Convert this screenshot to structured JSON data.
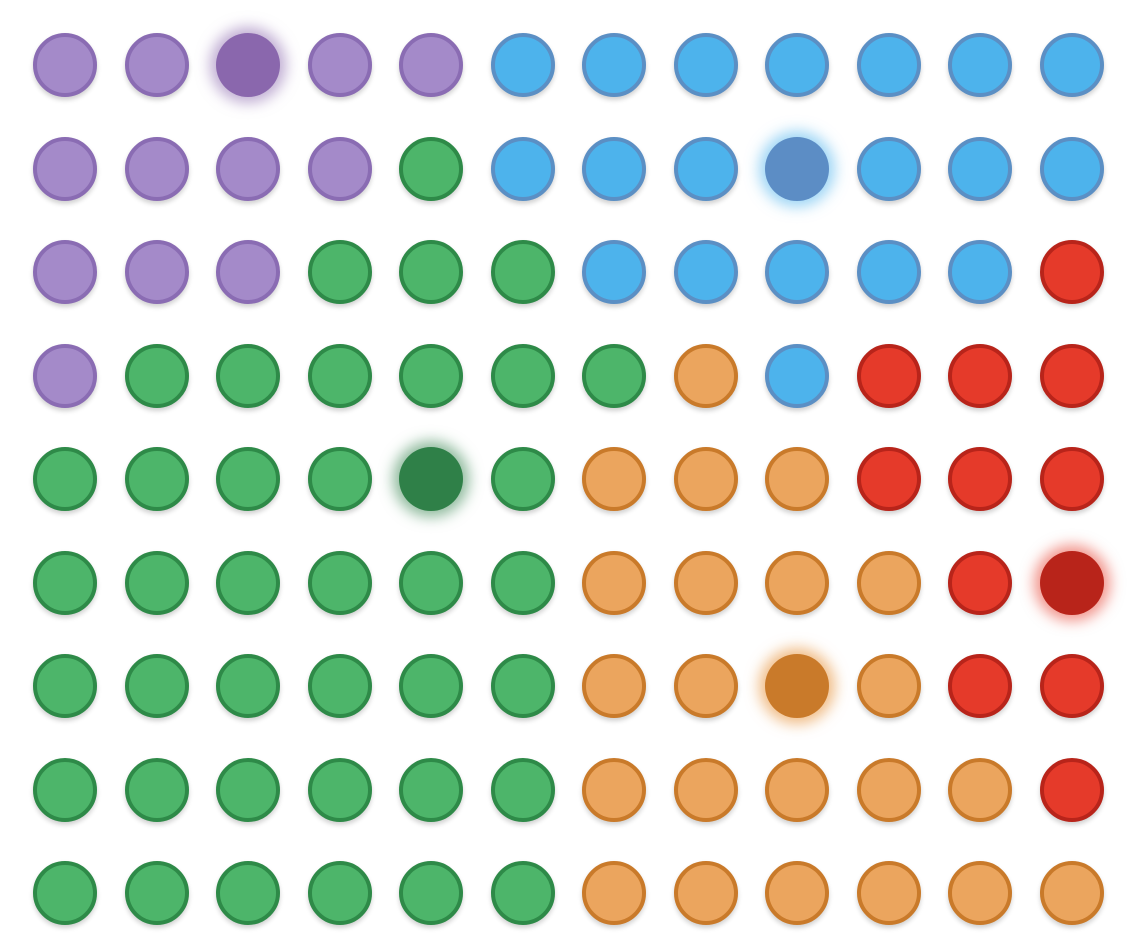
{
  "palette": {
    "purple": "#a48ac9",
    "blue": "#4db3ec",
    "green": "#4db56a",
    "orange": "#eba55e",
    "red": "#e53a2a"
  },
  "grid": {
    "rows": [
      [
        "purple",
        "purple",
        "purple",
        "purple",
        "purple",
        "blue",
        "blue",
        "blue",
        "blue",
        "blue",
        "blue",
        "blue"
      ],
      [
        "purple",
        "purple",
        "purple",
        "purple",
        "green",
        "blue",
        "blue",
        "blue",
        "blue",
        "blue",
        "blue",
        "blue"
      ],
      [
        "purple",
        "purple",
        "purple",
        "green",
        "green",
        "green",
        "blue",
        "blue",
        "blue",
        "blue",
        "blue",
        "red"
      ],
      [
        "purple",
        "green",
        "green",
        "green",
        "green",
        "green",
        "green",
        "orange",
        "blue",
        "red",
        "red",
        "red"
      ],
      [
        "green",
        "green",
        "green",
        "green",
        "green",
        "green",
        "orange",
        "orange",
        "orange",
        "red",
        "red",
        "red"
      ],
      [
        "green",
        "green",
        "green",
        "green",
        "green",
        "green",
        "orange",
        "orange",
        "orange",
        "orange",
        "red",
        "red"
      ],
      [
        "green",
        "green",
        "green",
        "green",
        "green",
        "green",
        "orange",
        "orange",
        "orange",
        "orange",
        "red",
        "red"
      ],
      [
        "green",
        "green",
        "green",
        "green",
        "green",
        "green",
        "orange",
        "orange",
        "orange",
        "orange",
        "orange",
        "red"
      ],
      [
        "green",
        "green",
        "green",
        "green",
        "green",
        "green",
        "orange",
        "orange",
        "orange",
        "orange",
        "orange",
        "orange"
      ]
    ],
    "selected": [
      {
        "row": 0,
        "col": 2
      },
      {
        "row": 1,
        "col": 8
      },
      {
        "row": 4,
        "col": 4
      },
      {
        "row": 5,
        "col": 11
      },
      {
        "row": 6,
        "col": 8
      }
    ]
  }
}
